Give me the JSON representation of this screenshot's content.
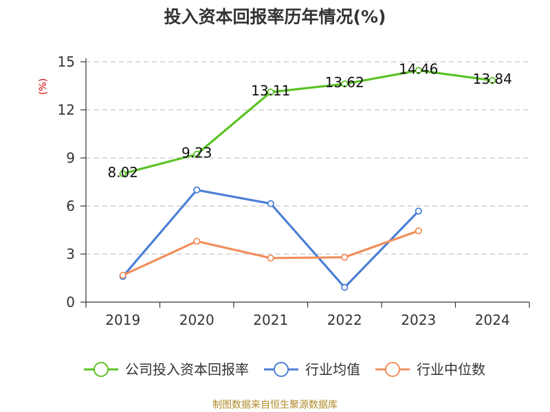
{
  "chart_data": {
    "type": "line",
    "title": "投入资本回报率历年情况(%)",
    "ylabel": "(%)",
    "xlabel": "",
    "categories": [
      "2019",
      "2020",
      "2021",
      "2022",
      "2023",
      "2024"
    ],
    "ylim": [
      0,
      15
    ],
    "yticks": [
      0,
      3,
      6,
      9,
      12,
      15
    ],
    "grid": true,
    "legend_position": "bottom",
    "series": [
      {
        "name": "公司投入资本回报率",
        "color": "#5bc225",
        "values": [
          8.02,
          9.23,
          13.11,
          13.62,
          14.46,
          13.84
        ],
        "labels": [
          "8.02",
          "9.23",
          "13.11",
          "13.62",
          "14.46",
          "13.84"
        ]
      },
      {
        "name": "行业均值",
        "color": "#4a7fd6",
        "values": [
          1.6,
          7.0,
          6.15,
          0.92,
          5.68,
          null
        ]
      },
      {
        "name": "行业中位数",
        "color": "#f28e5a",
        "values": [
          1.68,
          3.8,
          2.75,
          2.8,
          4.45,
          null
        ]
      }
    ]
  },
  "source": "制图数据来自恒生聚源数据库"
}
